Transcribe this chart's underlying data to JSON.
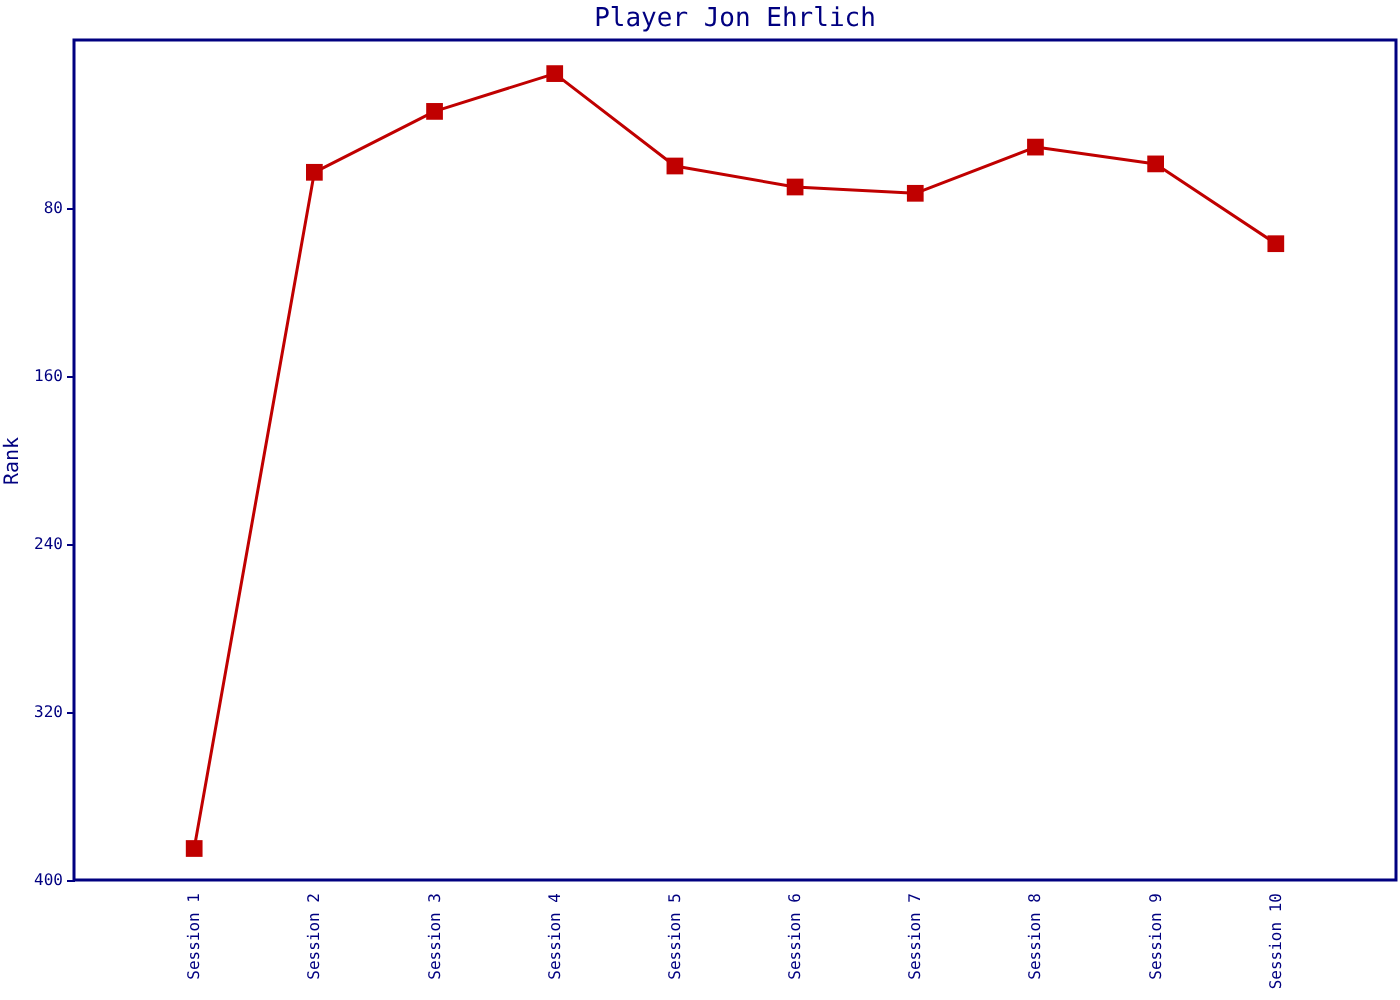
{
  "chart_data": {
    "type": "line",
    "title": "Player Jon Ehrlich",
    "ylabel": "Rank",
    "categories": [
      "Session 1",
      "Session 2",
      "Session 3",
      "Session 4",
      "Session 5",
      "Session 6",
      "Session 7",
      "Session 8",
      "Session 9",
      "Session 10"
    ],
    "series": [
      {
        "color": "#c00000",
        "values": [
          385,
          63,
          34,
          16,
          60,
          70,
          73,
          51,
          59,
          97
        ]
      }
    ],
    "ylim": [
      400,
      0
    ],
    "yticks": [
      80,
      160,
      240,
      320,
      400
    ],
    "grid": false,
    "marker": "square",
    "line_style": "solid"
  }
}
